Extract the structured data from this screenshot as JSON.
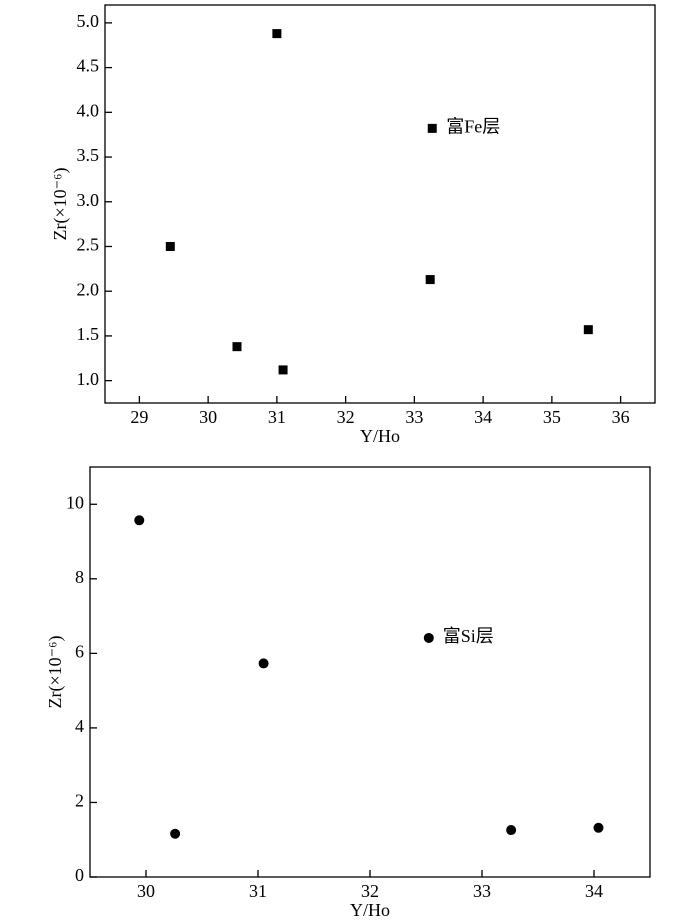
{
  "chart_data": [
    {
      "type": "scatter",
      "x_label": "Y/Ho",
      "y_label": "Zr(×10⁻⁶)",
      "legend": "center",
      "xlim": [
        28.5,
        36.5
      ],
      "xticks": [
        29,
        30,
        31,
        32,
        33,
        34,
        35,
        36
      ],
      "ylim": [
        0.75,
        5.2
      ],
      "yticks": [
        {
          "value": 1,
          "label": "1.0"
        },
        1.5,
        {
          "value": 2,
          "label": "2.0"
        },
        2.5,
        {
          "value": 3,
          "label": "3.0"
        },
        3.5,
        {
          "value": 4,
          "label": "4.0"
        },
        4.5,
        {
          "value": 5,
          "label": "5.0"
        }
      ],
      "series": [
        {
          "name": "富Fe层",
          "color": "#000000",
          "marker": "square",
          "x": [
            29.45,
            30.42,
            31.0,
            31.09,
            33.23,
            35.53
          ],
          "values": [
            2.5,
            1.38,
            4.88,
            1.12,
            2.13,
            1.57
          ]
        }
      ]
    },
    {
      "type": "scatter",
      "x_label": "Y/Ho",
      "y_label": "Zr(×10⁻⁶)",
      "legend": "center",
      "xlim": [
        29.5,
        34.5
      ],
      "xticks": [
        30,
        31,
        32,
        33,
        34
      ],
      "ylim": [
        0,
        11
      ],
      "yticks": [
        0,
        2,
        4,
        6,
        8,
        10
      ],
      "series": [
        {
          "name": "富Si层",
          "color": "#000000",
          "marker": "circle",
          "x": [
            29.94,
            30.26,
            31.05,
            33.26,
            34.04
          ],
          "values": [
            9.57,
            1.16,
            5.73,
            1.26,
            1.32
          ]
        }
      ]
    }
  ]
}
